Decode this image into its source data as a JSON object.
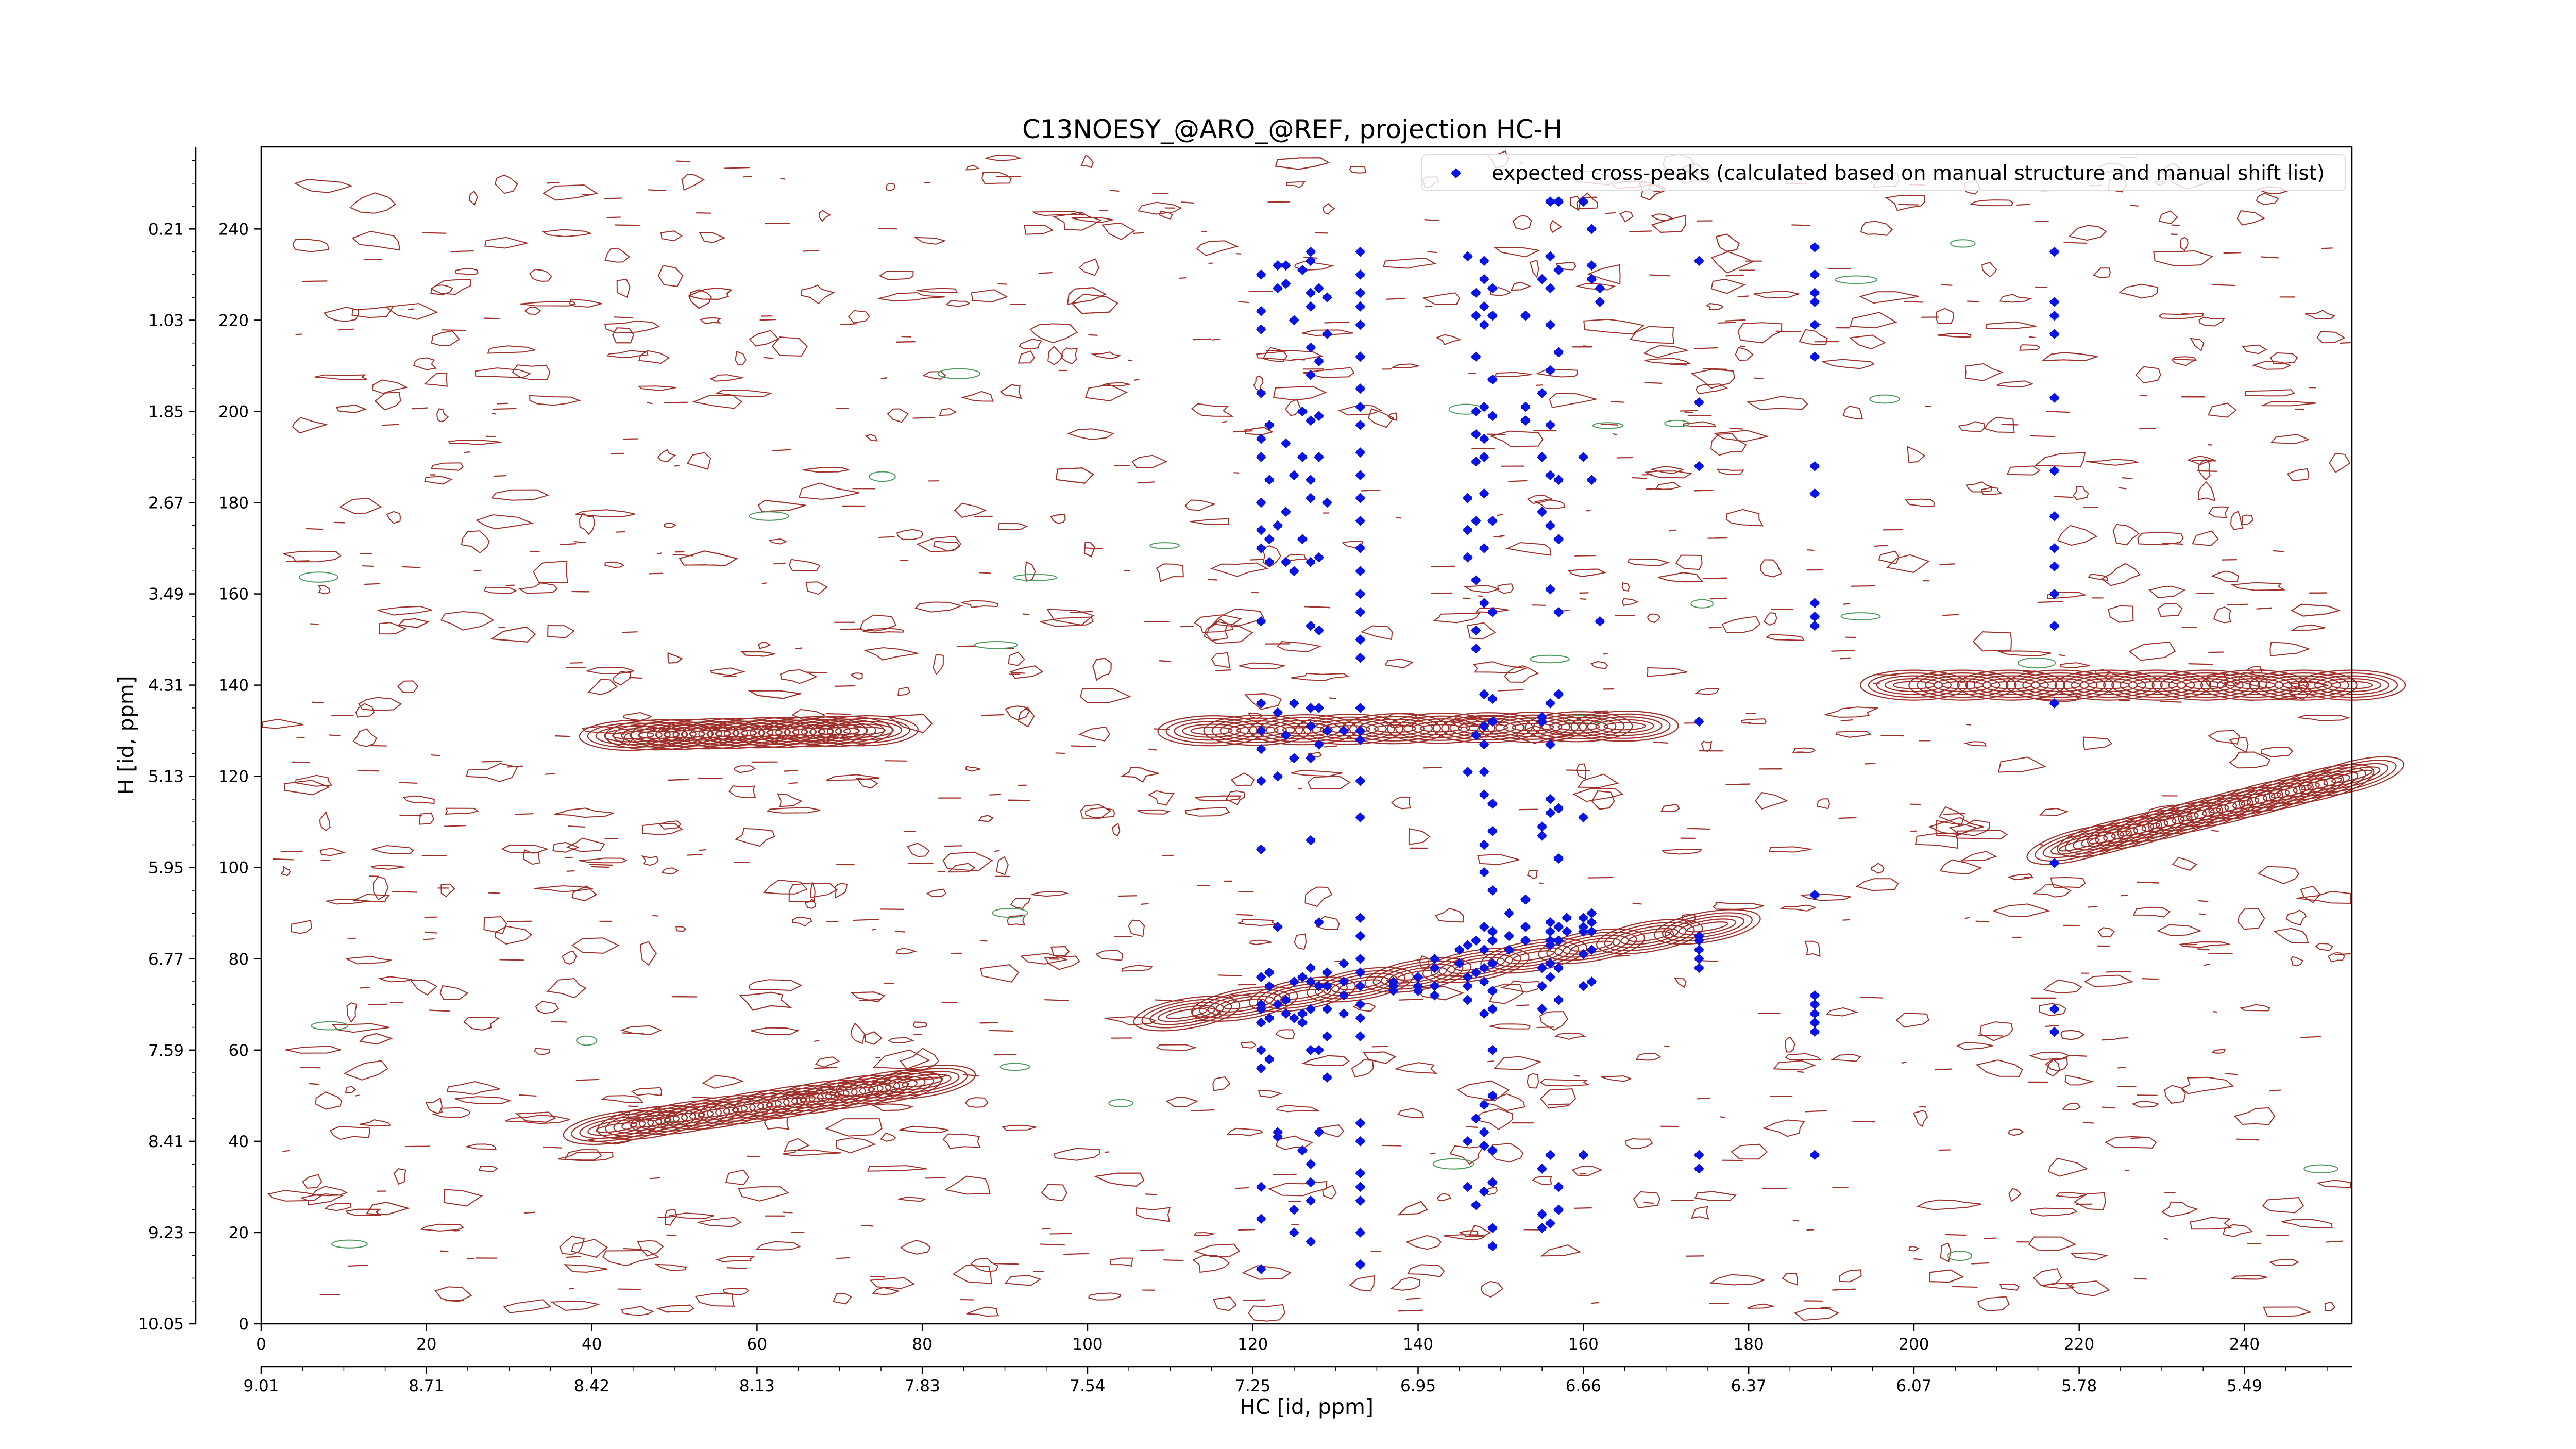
{
  "chart_data": {
    "type": "scatter",
    "title": "C13NOESY_@ARO_@REF, projection HC-H",
    "xlabel": "HC [id, ppm]",
    "ylabel": "H [id, ppm]",
    "xlim": [
      0,
      253
    ],
    "ylim": [
      0,
      258
    ],
    "x_ticks": [
      0,
      20,
      40,
      60,
      80,
      100,
      120,
      140,
      160,
      180,
      200,
      220,
      240
    ],
    "x_tick_labels": [
      "0",
      "20",
      "40",
      "60",
      "80",
      "100",
      "120",
      "140",
      "160",
      "180",
      "200",
      "220",
      "240"
    ],
    "x_ppm_ticks": [
      0,
      20,
      40,
      60,
      80,
      100,
      120,
      140,
      160,
      180,
      200,
      220,
      240
    ],
    "x_ppm_labels": [
      "9.01",
      "8.71",
      "8.42",
      "8.13",
      "7.83",
      "7.54",
      "7.25",
      "6.95",
      "6.66",
      "6.37",
      "6.07",
      "5.78",
      "5.49"
    ],
    "y_ticks": [
      0,
      20,
      40,
      60,
      80,
      100,
      120,
      140,
      160,
      180,
      200,
      220,
      240
    ],
    "y_tick_labels": [
      "0",
      "20",
      "40",
      "60",
      "80",
      "100",
      "120",
      "140",
      "160",
      "180",
      "200",
      "220",
      "240"
    ],
    "y_ppm_ticks": [
      0,
      20,
      40,
      60,
      80,
      100,
      120,
      140,
      160,
      180,
      200,
      220,
      240
    ],
    "y_ppm_labels": [
      "10.05",
      "9.23",
      "8.41",
      "7.59",
      "6.77",
      "5.95",
      "5.13",
      "4.31",
      "3.49",
      "2.67",
      "1.85",
      "1.03",
      "0.21"
    ],
    "legend": {
      "position": "top-right",
      "label": "expected cross-peaks (calculated based on manual structure and manual shift list)"
    },
    "grid": false,
    "colors": {
      "contour": "#a0302a",
      "contour_negative": "#4a9a5a",
      "marker": "#0a14e0"
    },
    "contour_ridges": [
      {
        "from": [
          43,
          43
        ],
        "to": [
          80,
          53
        ]
      },
      {
        "from": [
          112,
          68
        ],
        "to": [
          175,
          87
        ]
      },
      {
        "from": [
          45,
          129
        ],
        "to": [
          73,
          130
        ]
      },
      {
        "from": [
          115,
          130
        ],
        "to": [
          165,
          131
        ]
      },
      {
        "from": [
          200,
          140
        ],
        "to": [
          253,
          140
        ]
      },
      {
        "from": [
          220,
          105
        ],
        "to": [
          253,
          120
        ]
      }
    ],
    "series": [
      {
        "name": "expected cross-peaks (calculated based on manual structure and manual shift list)",
        "columns": [
          {
            "x": 121,
            "y": [
              12,
              23,
              30,
              56,
              60,
              66,
              69,
              70,
              76,
              104,
              119,
              126,
              130,
              136,
              154,
              170,
              174,
              180,
              190,
              194,
              204,
              218,
              222,
              230
            ]
          },
          {
            "x": 122,
            "y": [
              58,
              67,
              74,
              77,
              167,
              172,
              185,
              197
            ]
          },
          {
            "x": 123,
            "y": [
              41,
              42,
              70,
              87,
              120,
              134,
              175,
              227,
              232
            ]
          },
          {
            "x": 124,
            "y": [
              68,
              71,
              129,
              167,
              178,
              193,
              228,
              232
            ]
          },
          {
            "x": 125,
            "y": [
              20,
              25,
              67,
              75,
              124,
              136,
              165,
              186,
              220
            ]
          },
          {
            "x": 126,
            "y": [
              38,
              66,
              68,
              76,
              172,
              190,
              200,
              231
            ]
          },
          {
            "x": 127,
            "y": [
              18,
              27,
              31,
              35,
              60,
              69,
              75,
              78,
              106,
              124,
              131,
              135,
              153,
              167,
              181,
              185,
              198,
              208,
              214,
              223,
              226,
              233,
              235
            ]
          },
          {
            "x": 128,
            "y": [
              42,
              60,
              74,
              88,
              127,
              135,
              152,
              168,
              190,
              199,
              211,
              227
            ]
          },
          {
            "x": 129,
            "y": [
              54,
              63,
              69,
              74,
              77,
              130,
              180,
              217,
              225
            ]
          },
          {
            "x": 131,
            "y": [
              68,
              72,
              75,
              79,
              130
            ]
          },
          {
            "x": 133,
            "y": [
              13,
              20,
              27,
              30,
              33,
              40,
              44,
              63,
              67,
              70,
              74,
              77,
              80,
              85,
              89,
              111,
              119,
              128,
              130,
              135,
              146,
              150,
              156,
              160,
              165,
              170,
              176,
              181,
              186,
              191,
              197,
              201,
              205,
              212,
              219,
              223,
              226,
              230,
              235
            ]
          },
          {
            "x": 137,
            "y": [
              73,
              74,
              75
            ]
          },
          {
            "x": 140,
            "y": [
              73,
              74,
              76
            ]
          },
          {
            "x": 142,
            "y": [
              72,
              74,
              78,
              80
            ]
          },
          {
            "x": 145,
            "y": [
              79,
              82
            ]
          },
          {
            "x": 146,
            "y": [
              30,
              40,
              71,
              74,
              76,
              83,
              121,
              174,
              168,
              181,
              234
            ]
          },
          {
            "x": 147,
            "y": [
              26,
              45,
              77,
              84,
              129,
              148,
              152,
              163,
              176,
              189,
              195,
              200,
              212,
              221,
              226
            ]
          },
          {
            "x": 148,
            "y": [
              29,
              39,
              42,
              48,
              68,
              75,
              78,
              82,
              87,
              99,
              105,
              116,
              121,
              127,
              131,
              138,
              158,
              170,
              182,
              190,
              194,
              201,
              219,
              223,
              229,
              233
            ]
          },
          {
            "x": 149,
            "y": [
              17,
              21,
              31,
              38,
              50,
              60,
              69,
              73,
              79,
              84,
              86,
              95,
              108,
              114,
              132,
              137,
              156,
              176,
              199,
              207,
              221,
              227
            ]
          },
          {
            "x": 151,
            "y": [
              82,
              90,
              85
            ]
          },
          {
            "x": 153,
            "y": [
              84,
              87,
              93,
              198,
              201,
              221
            ]
          },
          {
            "x": 155,
            "y": [
              21,
              24,
              34,
              69,
              74,
              78,
              107,
              109,
              132,
              133,
              178,
              190,
              204,
              229
            ]
          },
          {
            "x": 156,
            "y": [
              22,
              37,
              76,
              79,
              83,
              84,
              86,
              88,
              112,
              115,
              127,
              136,
              161,
              175,
              186,
              197,
              209,
              219,
              227,
              234,
              246
            ]
          },
          {
            "x": 157,
            "y": [
              25,
              30,
              71,
              78,
              84,
              87,
              102,
              113,
              138,
              156,
              172,
              185,
              213,
              231,
              246
            ]
          },
          {
            "x": 158,
            "y": [
              86,
              89
            ]
          },
          {
            "x": 160,
            "y": [
              37,
              74,
              81,
              86,
              87,
              89,
              111,
              190,
              246
            ]
          },
          {
            "x": 161,
            "y": [
              75,
              82,
              86,
              88,
              90,
              185,
              229,
              232,
              240
            ]
          },
          {
            "x": 162,
            "y": [
              154,
              224,
              227
            ]
          },
          {
            "x": 174,
            "y": [
              34,
              37,
              78,
              80,
              82,
              84,
              85,
              132,
              188,
              202,
              233
            ]
          },
          {
            "x": 188,
            "y": [
              37,
              64,
              66,
              68,
              70,
              72,
              94,
              153,
              155,
              158,
              182,
              188,
              212,
              219,
              224,
              226,
              230,
              236
            ]
          },
          {
            "x": 217,
            "y": [
              64,
              69,
              101,
              136,
              153,
              160,
              166,
              170,
              177,
              187,
              203,
              217,
              221,
              224,
              235
            ]
          }
        ]
      }
    ]
  }
}
